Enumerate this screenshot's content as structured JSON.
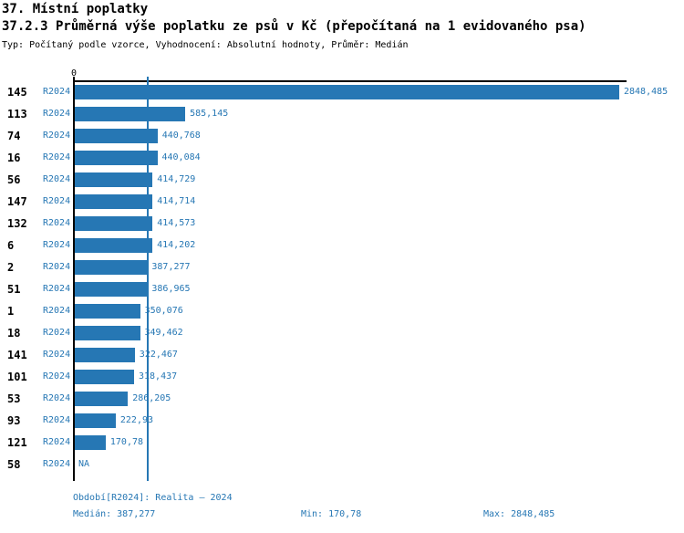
{
  "header": {
    "title_line1": "37. Místní poplatky",
    "title_line2": "37.2.3 Průměrná výše poplatku ze psů v Kč (přepočítaná na 1 evidovaného psa)",
    "subtitle": "Typ: Počítaný podle vzorce, Vyhodnocení: Absolutní hodnoty, Průměr: Medián"
  },
  "chart_data": {
    "type": "bar",
    "orientation": "horizontal",
    "title": "37.2.3 Průměrná výše poplatku ze psů v Kč (přepočítaná na 1 evidovaného psa)",
    "series_label": "R2024",
    "categories": [
      "145",
      "113",
      "74",
      "16",
      "56",
      "147",
      "132",
      "6",
      "2",
      "51",
      "1",
      "18",
      "141",
      "101",
      "53",
      "93",
      "121",
      "58"
    ],
    "values": [
      2848.485,
      585.145,
      440.768,
      440.084,
      414.729,
      414.714,
      414.573,
      414.202,
      387.277,
      386.965,
      350.076,
      349.462,
      322.467,
      318.437,
      286.205,
      222.93,
      170.78,
      null
    ],
    "value_labels": [
      "2848,485",
      "585,145",
      "440,768",
      "440,084",
      "414,729",
      "414,714",
      "414,573",
      "414,202",
      "387,277",
      "386,965",
      "350,076",
      "349,462",
      "322,467",
      "318,437",
      "286,205",
      "222,93",
      "170,78",
      "NA"
    ],
    "na_label": "NA",
    "axis_zero_label": "0",
    "xlim": [
      0,
      2886
    ],
    "median_value": 387.277,
    "grid": "median-line-only",
    "legend_position": "none",
    "bar_color": "#2677b4",
    "axis_color": "#000000",
    "label_color": "#2677b4"
  },
  "footer": {
    "period_line": "Období[R2024]: Realita – 2024",
    "median_label": "Medián: 387,277",
    "min_label": "Min: 170,78",
    "max_label": "Max: 2848,485"
  }
}
